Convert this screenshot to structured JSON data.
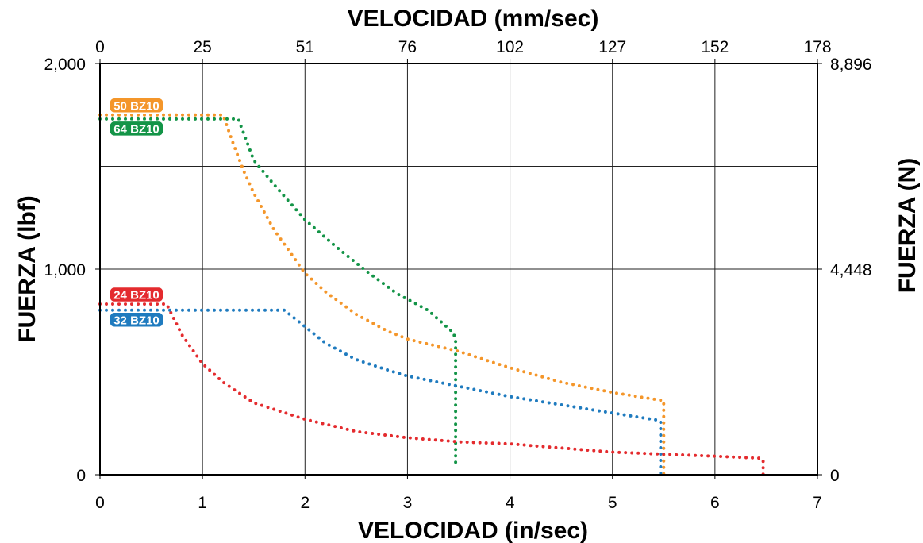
{
  "chart_data": {
    "type": "line",
    "title": "VELOCIDAD (mm/sec)",
    "xlabel": "VELOCIDAD (in/sec)",
    "ylabel": "FUERZA (lbf)",
    "y2label": "FUERZA (N)",
    "xlim": [
      0,
      7
    ],
    "ylim": [
      0,
      2000
    ],
    "x_ticks": [
      "0",
      "1",
      "2",
      "3",
      "4",
      "5",
      "6",
      "7"
    ],
    "x2_ticks": [
      "0",
      "25",
      "51",
      "76",
      "102",
      "127",
      "152",
      "178"
    ],
    "y_ticks": [
      "0",
      "1,000",
      "2,000"
    ],
    "y_tick_values": [
      0,
      1000,
      2000
    ],
    "y2_ticks": [
      "0",
      "4,448",
      "8,896"
    ],
    "grid": true,
    "line_style": "dotted",
    "series": [
      {
        "name": "50 BZ10",
        "color": "#f4962a",
        "x": [
          0,
          1.2,
          1.3,
          1.4,
          1.5,
          1.6,
          1.7,
          1.8,
          2.0,
          2.2,
          2.5,
          2.8,
          3.0,
          3.5,
          4.0,
          4.5,
          5.0,
          5.5,
          5.5
        ],
        "y": [
          1750,
          1750,
          1610,
          1480,
          1370,
          1280,
          1190,
          1120,
          980,
          890,
          780,
          700,
          660,
          600,
          520,
          450,
          400,
          360,
          0
        ]
      },
      {
        "name": "64 BZ10",
        "color": "#139447",
        "x": [
          0,
          1.35,
          1.5,
          1.7,
          2.0,
          2.3,
          2.6,
          2.9,
          3.2,
          3.45,
          3.47,
          3.47
        ],
        "y": [
          1730,
          1730,
          1530,
          1410,
          1240,
          1110,
          990,
          880,
          800,
          690,
          650,
          30
        ]
      },
      {
        "name": "24 BZ10",
        "color": "#e42b2e",
        "x": [
          0,
          0.65,
          0.8,
          1.0,
          1.2,
          1.5,
          2.0,
          2.5,
          3.0,
          3.5,
          4.0,
          4.5,
          5.0,
          5.5,
          6.0,
          6.45,
          6.47,
          6.47
        ],
        "y": [
          830,
          830,
          680,
          540,
          450,
          350,
          270,
          210,
          180,
          160,
          150,
          130,
          110,
          100,
          90,
          80,
          70,
          0
        ]
      },
      {
        "name": "32 BZ10",
        "color": "#1f7bbf",
        "x": [
          0,
          1.8,
          2.0,
          2.2,
          2.5,
          2.8,
          3.0,
          3.5,
          4.0,
          4.5,
          5.0,
          5.45,
          5.47,
          5.47
        ],
        "y": [
          800,
          800,
          720,
          640,
          560,
          510,
          480,
          430,
          380,
          340,
          300,
          265,
          260,
          0
        ]
      }
    ]
  }
}
